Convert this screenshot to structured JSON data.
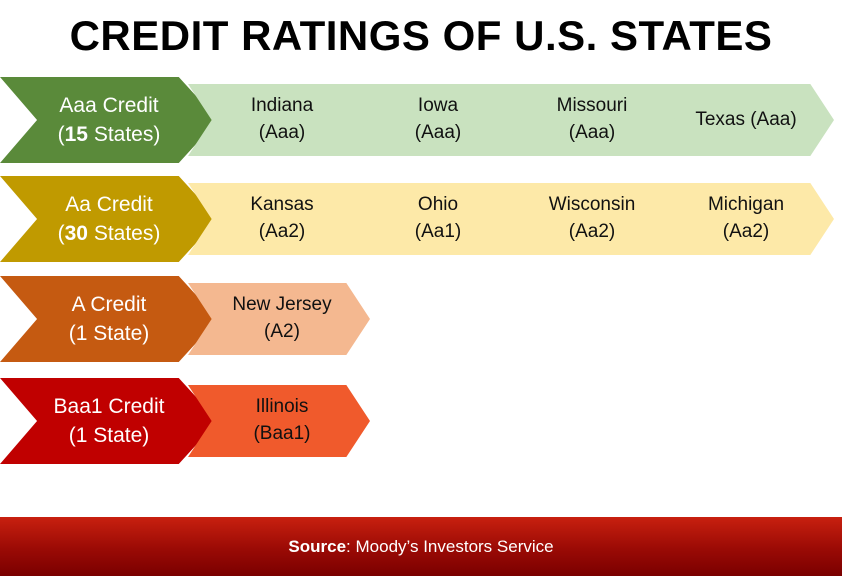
{
  "title": "CREDIT RATINGS OF U.S. STATES",
  "rows": [
    {
      "color": "#5a8a3a",
      "item_color": "#c9e2bf",
      "head": {
        "line1": "Aaa Credit",
        "open": "(",
        "count": "15",
        "count_suffix": " States)"
      },
      "items": [
        {
          "name": "Indiana",
          "rating": "(Aaa)"
        },
        {
          "name": "Iowa",
          "rating": "(Aaa)"
        },
        {
          "name": "Missouri",
          "rating": "(Aaa)"
        },
        {
          "name": "Texas (Aaa)",
          "rating": ""
        }
      ]
    },
    {
      "color": "#c09a00",
      "item_color": "#fde9a8",
      "head": {
        "line1": "Aa Credit",
        "open": "(",
        "count": "30",
        "count_suffix": " States)"
      },
      "items": [
        {
          "name": "Kansas",
          "rating": "(Aa2)"
        },
        {
          "name": "Ohio",
          "rating": "(Aa1)"
        },
        {
          "name": "Wisconsin",
          "rating": "(Aa2)"
        },
        {
          "name": "Michigan",
          "rating": "(Aa2)"
        }
      ]
    },
    {
      "color": "#c55a11",
      "item_color": "#f4b890",
      "head": {
        "line1": "A Credit",
        "open": "(",
        "count": "1",
        "count_suffix": " State)"
      },
      "items": [
        {
          "name": "New Jersey",
          "rating": "(A2)"
        }
      ]
    },
    {
      "color": "#c00000",
      "item_color": "#f05a2c",
      "head": {
        "line1": "Baa1 Credit",
        "open": "(",
        "count": "1",
        "count_suffix": " State)"
      },
      "items": [
        {
          "name": "Illinois",
          "rating": "(Baa1)"
        }
      ]
    }
  ],
  "footer": {
    "label": "Source",
    "text": ": Moody’s Investors Service"
  }
}
